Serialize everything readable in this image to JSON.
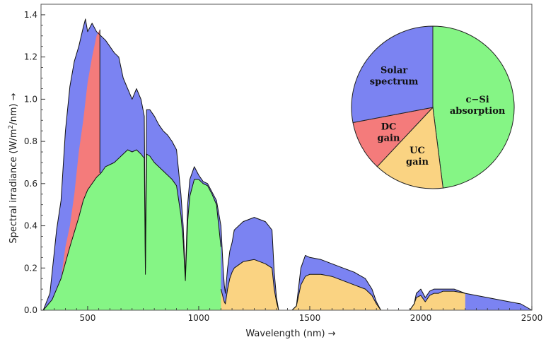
{
  "chart_data": [
    {
      "type": "area",
      "xlabel": "Wavelength (nm) →",
      "ylabel_parts": {
        "pre": "Spectral irradiance (W/m",
        "sup": "2",
        "post": "/nm) →"
      },
      "xlim": [
        290,
        2500
      ],
      "ylim": [
        0,
        1.45
      ],
      "x_ticks": [
        500,
        1000,
        1500,
        2000,
        2500
      ],
      "y_ticks": [
        "0.0",
        "0.2",
        "0.4",
        "0.6",
        "0.8",
        "1.0",
        "1.2",
        "1.4"
      ],
      "grid": false,
      "colors": {
        "solar": "#7b83f2",
        "dc": "#f47b7b",
        "csi": "#85f585",
        "uc": "#fad382",
        "line": "#111111"
      },
      "series": [
        {
          "name": "Solar spectrum",
          "x": [
            300,
            330,
            360,
            380,
            400,
            420,
            440,
            460,
            480,
            490,
            500,
            520,
            540,
            560,
            580,
            600,
            620,
            640,
            660,
            680,
            700,
            720,
            740,
            755,
            760,
            765,
            780,
            800,
            820,
            840,
            860,
            880,
            900,
            920,
            930,
            940,
            950,
            960,
            980,
            1000,
            1020,
            1040,
            1060,
            1080,
            1100,
            1110,
            1115,
            1120,
            1130,
            1140,
            1150,
            1160,
            1200,
            1250,
            1300,
            1330,
            1340,
            1350,
            1360,
            1380,
            1400,
            1420,
            1440,
            1460,
            1480,
            1500,
            1550,
            1600,
            1650,
            1700,
            1750,
            1780,
            1800,
            1820,
            1850,
            1900,
            1950,
            1970,
            1980,
            2000,
            2020,
            2040,
            2060,
            2080,
            2100,
            2150,
            2200,
            2250,
            2300,
            2350,
            2400,
            2450,
            2500
          ],
          "y": [
            0.0,
            0.08,
            0.38,
            0.52,
            0.85,
            1.06,
            1.18,
            1.25,
            1.34,
            1.38,
            1.32,
            1.36,
            1.32,
            1.3,
            1.28,
            1.25,
            1.22,
            1.2,
            1.1,
            1.05,
            1.0,
            1.05,
            1.0,
            0.92,
            0.2,
            0.95,
            0.95,
            0.92,
            0.88,
            0.85,
            0.83,
            0.8,
            0.76,
            0.55,
            0.4,
            0.16,
            0.5,
            0.62,
            0.68,
            0.64,
            0.61,
            0.6,
            0.56,
            0.52,
            0.4,
            0.2,
            0.12,
            0.08,
            0.2,
            0.28,
            0.32,
            0.38,
            0.42,
            0.44,
            0.42,
            0.38,
            0.18,
            0.06,
            0.0,
            0.0,
            0.0,
            0.0,
            0.02,
            0.2,
            0.26,
            0.25,
            0.24,
            0.22,
            0.2,
            0.18,
            0.15,
            0.1,
            0.04,
            0.0,
            0.0,
            0.0,
            0.0,
            0.03,
            0.08,
            0.1,
            0.06,
            0.09,
            0.1,
            0.1,
            0.1,
            0.1,
            0.08,
            0.07,
            0.06,
            0.05,
            0.04,
            0.03,
            0.0
          ]
        },
        {
          "name": "c−Si absorption",
          "x": [
            300,
            340,
            380,
            420,
            460,
            480,
            500,
            520,
            540,
            560,
            580,
            600,
            620,
            640,
            660,
            680,
            700,
            720,
            740,
            755,
            760,
            765,
            780,
            800,
            820,
            840,
            860,
            880,
            900,
            920,
            930,
            940,
            950,
            960,
            980,
            1000,
            1020,
            1040,
            1060,
            1080,
            1100
          ],
          "y": [
            0.0,
            0.05,
            0.15,
            0.3,
            0.44,
            0.52,
            0.57,
            0.6,
            0.63,
            0.65,
            0.68,
            0.69,
            0.7,
            0.72,
            0.74,
            0.76,
            0.75,
            0.76,
            0.74,
            0.72,
            0.17,
            0.74,
            0.73,
            0.7,
            0.68,
            0.66,
            0.64,
            0.62,
            0.59,
            0.45,
            0.33,
            0.14,
            0.42,
            0.54,
            0.62,
            0.62,
            0.6,
            0.59,
            0.55,
            0.5,
            0.3
          ]
        },
        {
          "name": "DC gain",
          "x": [
            300,
            340,
            380,
            400,
            420,
            440,
            460,
            480,
            500,
            520,
            540,
            555
          ],
          "y": [
            0.0,
            0.05,
            0.15,
            0.3,
            0.4,
            0.55,
            0.75,
            0.9,
            1.08,
            1.2,
            1.3,
            1.33
          ]
        },
        {
          "name": "UC gain",
          "x": [
            1100,
            1110,
            1115,
            1120,
            1130,
            1140,
            1150,
            1160,
            1200,
            1250,
            1300,
            1330,
            1340,
            1350,
            1360,
            1380,
            1400,
            1420,
            1440,
            1460,
            1480,
            1500,
            1550,
            1600,
            1650,
            1700,
            1750,
            1780,
            1800,
            1820,
            1850,
            1900,
            1950,
            1970,
            1980,
            2000,
            2020,
            2040,
            2060,
            2080,
            2100,
            2150,
            2200
          ],
          "y": [
            0.1,
            0.06,
            0.04,
            0.03,
            0.1,
            0.15,
            0.18,
            0.2,
            0.23,
            0.24,
            0.22,
            0.2,
            0.1,
            0.04,
            0.0,
            0.0,
            0.0,
            0.0,
            0.02,
            0.12,
            0.16,
            0.17,
            0.17,
            0.16,
            0.14,
            0.12,
            0.1,
            0.07,
            0.03,
            0.0,
            0.0,
            0.0,
            0.0,
            0.03,
            0.06,
            0.07,
            0.04,
            0.07,
            0.08,
            0.08,
            0.09,
            0.09,
            0.08
          ]
        }
      ],
      "x_breaks": {
        "dc_end": 555,
        "csi_end": 1100,
        "uc_end": 2200
      }
    },
    {
      "type": "pie",
      "slices": [
        {
          "label": "c−Si absorption",
          "lines": [
            "c−Si",
            "absorption"
          ],
          "value": 48,
          "color": "#85f585"
        },
        {
          "label": "UC gain",
          "lines": [
            "UC",
            "gain"
          ],
          "value": 14,
          "color": "#fad382"
        },
        {
          "label": "DC gain",
          "lines": [
            "DC",
            "gain"
          ],
          "value": 10,
          "color": "#f47b7b"
        },
        {
          "label": "Solar spectrum",
          "lines": [
            "Solar",
            "spectrum"
          ],
          "value": 28,
          "color": "#7b83f2"
        }
      ],
      "start_angle_deg": 90
    }
  ]
}
